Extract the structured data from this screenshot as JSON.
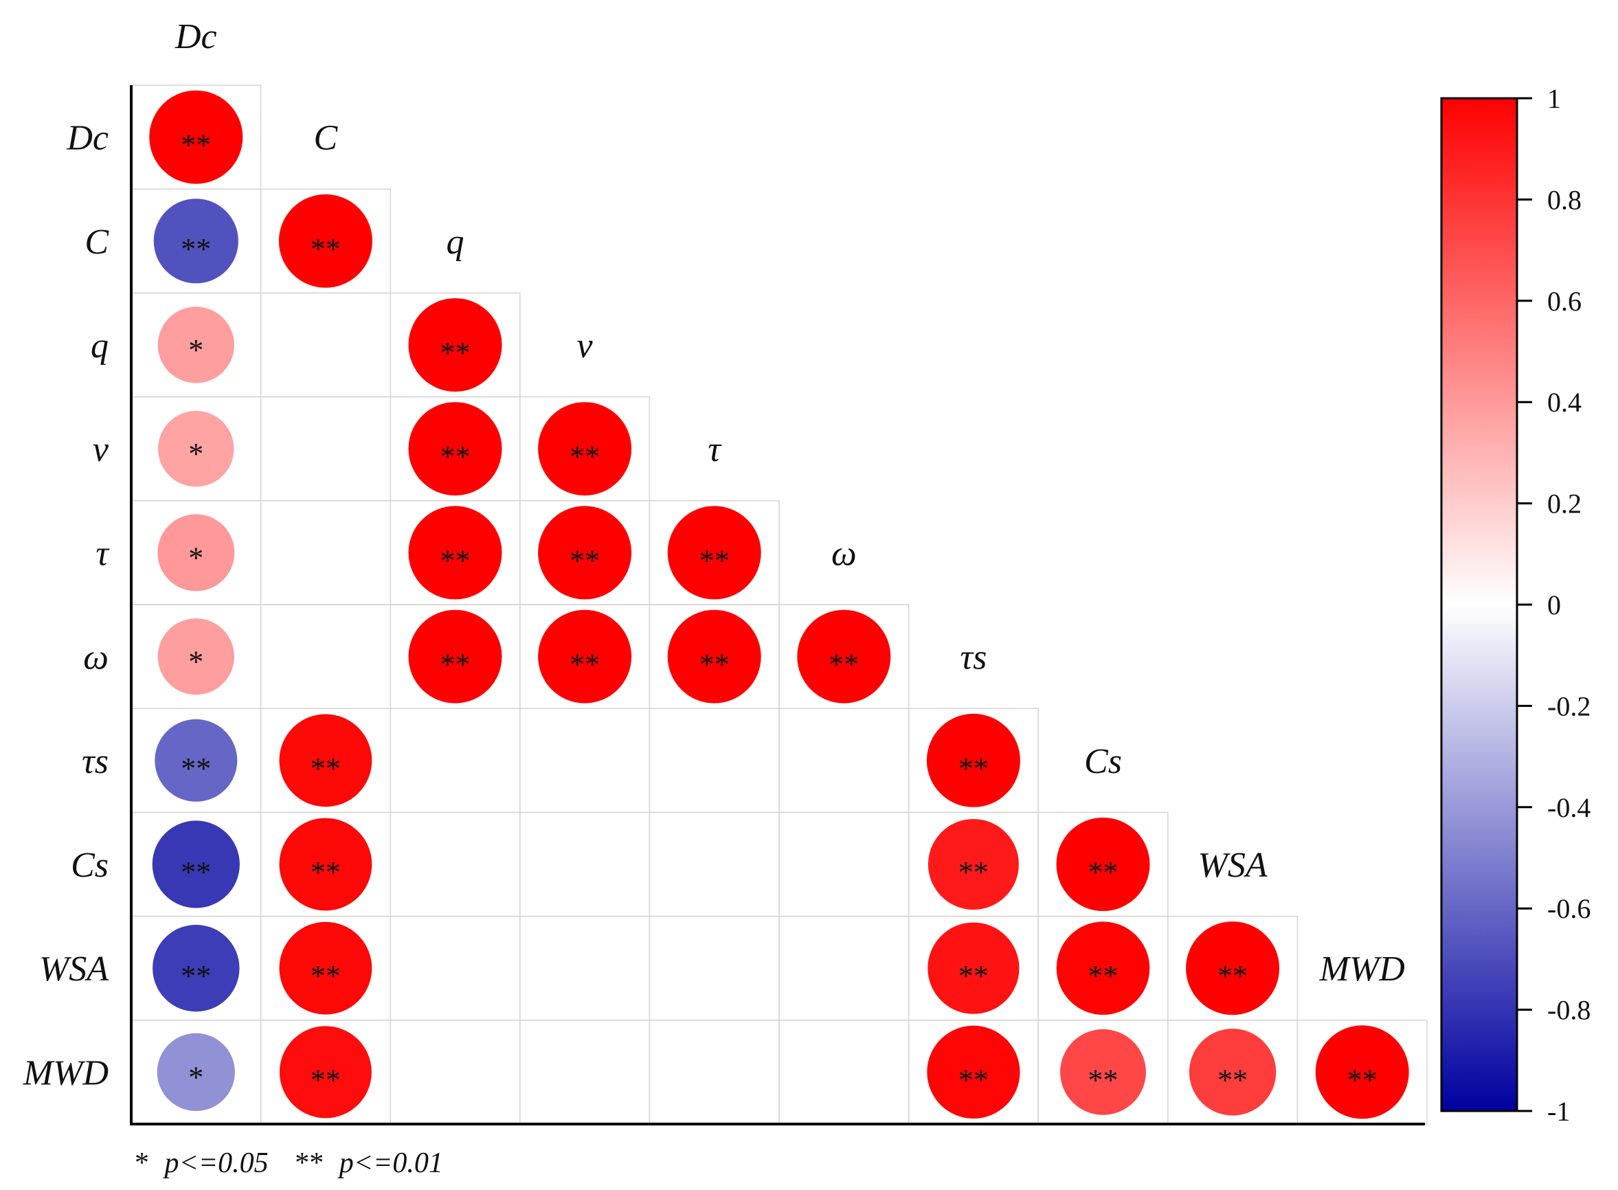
{
  "chart_data": {
    "type": "correlation-matrix",
    "variables": [
      "Dc",
      "C",
      "q",
      "v",
      "τ",
      "ω",
      "τs",
      "Cs",
      "WSA",
      "MWD"
    ],
    "top_label": "Dc",
    "cells": [
      {
        "row": 0,
        "col": 0,
        "value": 1.0,
        "sig": "**"
      },
      {
        "row": 1,
        "col": 0,
        "value": -0.68,
        "sig": "**"
      },
      {
        "row": 1,
        "col": 1,
        "value": 1.0,
        "sig": "**"
      },
      {
        "row": 2,
        "col": 0,
        "value": 0.38,
        "sig": "*"
      },
      {
        "row": 2,
        "col": 2,
        "value": 1.0,
        "sig": "**"
      },
      {
        "row": 3,
        "col": 0,
        "value": 0.36,
        "sig": "*"
      },
      {
        "row": 3,
        "col": 2,
        "value": 1.0,
        "sig": "**"
      },
      {
        "row": 3,
        "col": 3,
        "value": 1.0,
        "sig": "**"
      },
      {
        "row": 4,
        "col": 0,
        "value": 0.4,
        "sig": "*"
      },
      {
        "row": 4,
        "col": 2,
        "value": 1.0,
        "sig": "**"
      },
      {
        "row": 4,
        "col": 3,
        "value": 1.0,
        "sig": "**"
      },
      {
        "row": 4,
        "col": 4,
        "value": 1.0,
        "sig": "**"
      },
      {
        "row": 5,
        "col": 0,
        "value": 0.38,
        "sig": "*"
      },
      {
        "row": 5,
        "col": 2,
        "value": 1.0,
        "sig": "**"
      },
      {
        "row": 5,
        "col": 3,
        "value": 1.0,
        "sig": "**"
      },
      {
        "row": 5,
        "col": 4,
        "value": 1.0,
        "sig": "**"
      },
      {
        "row": 5,
        "col": 5,
        "value": 1.0,
        "sig": "**"
      },
      {
        "row": 6,
        "col": 0,
        "value": -0.6,
        "sig": "**"
      },
      {
        "row": 6,
        "col": 1,
        "value": 0.97,
        "sig": "**"
      },
      {
        "row": 6,
        "col": 6,
        "value": 1.0,
        "sig": "**"
      },
      {
        "row": 7,
        "col": 0,
        "value": -0.78,
        "sig": "**"
      },
      {
        "row": 7,
        "col": 1,
        "value": 0.97,
        "sig": "**"
      },
      {
        "row": 7,
        "col": 6,
        "value": 0.9,
        "sig": "**"
      },
      {
        "row": 7,
        "col": 7,
        "value": 1.0,
        "sig": "**"
      },
      {
        "row": 8,
        "col": 0,
        "value": -0.76,
        "sig": "**"
      },
      {
        "row": 8,
        "col": 1,
        "value": 0.97,
        "sig": "**"
      },
      {
        "row": 8,
        "col": 6,
        "value": 0.93,
        "sig": "**"
      },
      {
        "row": 8,
        "col": 7,
        "value": 0.99,
        "sig": "**"
      },
      {
        "row": 8,
        "col": 8,
        "value": 1.0,
        "sig": "**"
      },
      {
        "row": 9,
        "col": 0,
        "value": -0.43,
        "sig": "*"
      },
      {
        "row": 9,
        "col": 1,
        "value": 0.95,
        "sig": "**"
      },
      {
        "row": 9,
        "col": 6,
        "value": 0.98,
        "sig": "**"
      },
      {
        "row": 9,
        "col": 7,
        "value": 0.72,
        "sig": "**"
      },
      {
        "row": 9,
        "col": 8,
        "value": 0.76,
        "sig": "**"
      },
      {
        "row": 9,
        "col": 9,
        "value": 1.0,
        "sig": "**"
      }
    ],
    "colorbar": {
      "min": -1,
      "max": 1,
      "ticks": [
        "1",
        "0.8",
        "0.6",
        "0.4",
        "0.2",
        "0",
        "-0.2",
        "-0.4",
        "-0.6",
        "-0.8",
        "-1"
      ],
      "colors": {
        "negative": "#0000a0",
        "zero": "#ffffff",
        "positive": "#ff0000"
      }
    },
    "footnote": {
      "star1": "*",
      "star1_text": "p<=0.05",
      "star2": "**",
      "star2_text": "p<=0.01"
    },
    "grid": true
  }
}
